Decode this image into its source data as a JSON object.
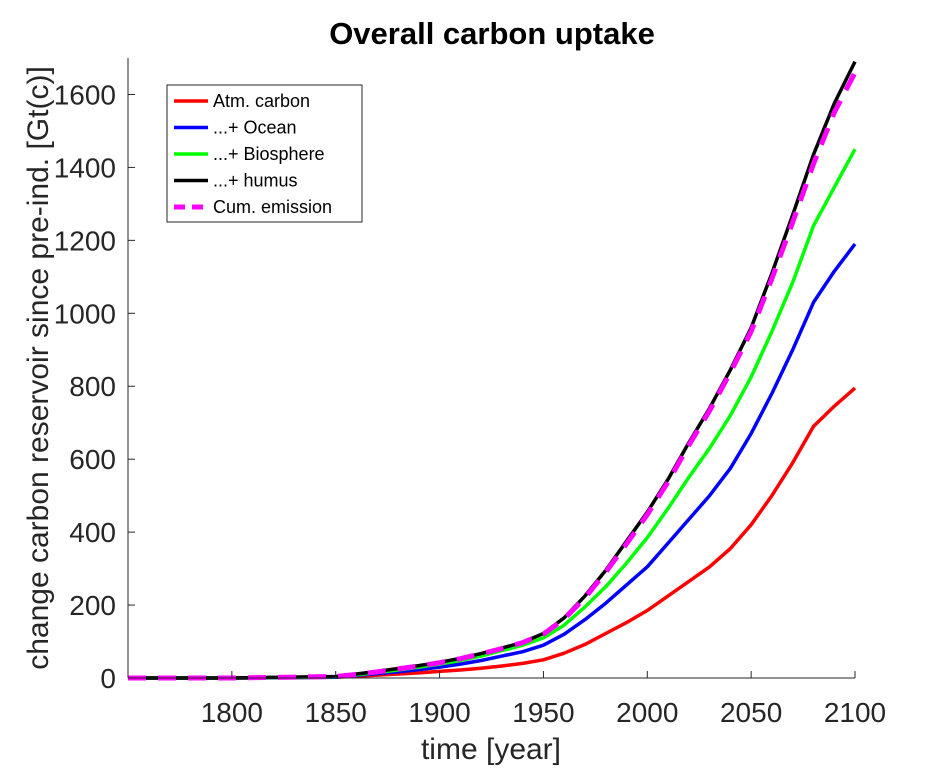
{
  "chart_data": {
    "type": "line",
    "title": "Overall carbon uptake",
    "xlabel": "time [year]",
    "ylabel": "change carbon reservoir since pre-ind. [Gt(c)]",
    "xlim": [
      1750,
      2100
    ],
    "ylim": [
      0,
      1700
    ],
    "xticks": [
      1800,
      1850,
      1900,
      1950,
      2000,
      2050,
      2100
    ],
    "yticks": [
      0,
      200,
      400,
      600,
      800,
      1000,
      1200,
      1400,
      1600
    ],
    "grid": false,
    "legend_position": "top-left",
    "x": [
      1750,
      1800,
      1850,
      1860,
      1870,
      1880,
      1890,
      1900,
      1910,
      1920,
      1930,
      1940,
      1950,
      1960,
      1970,
      1980,
      1990,
      2000,
      2010,
      2020,
      2030,
      2040,
      2050,
      2060,
      2070,
      2080,
      2090,
      2100
    ],
    "series": [
      {
        "name": "Atm. carbon",
        "color": "#ff0000",
        "dash": "solid",
        "values": [
          0,
          0,
          2,
          5,
          8,
          11,
          14,
          18,
          22,
          27,
          33,
          40,
          50,
          68,
          92,
          122,
          152,
          185,
          225,
          265,
          305,
          355,
          420,
          500,
          590,
          690,
          745,
          795
        ]
      },
      {
        "name": "...+ Ocean",
        "color": "#0000ff",
        "dash": "solid",
        "values": [
          0,
          0,
          2,
          7,
          12,
          17,
          23,
          30,
          38,
          48,
          60,
          72,
          90,
          120,
          160,
          205,
          255,
          305,
          370,
          435,
          500,
          575,
          670,
          780,
          900,
          1030,
          1115,
          1190
        ]
      },
      {
        "name": "...+ Biosphere",
        "color": "#00ff00",
        "dash": "solid",
        "values": [
          0,
          0,
          3,
          9,
          15,
          22,
          30,
          38,
          48,
          60,
          75,
          90,
          110,
          145,
          195,
          250,
          315,
          385,
          465,
          550,
          630,
          720,
          825,
          950,
          1085,
          1240,
          1345,
          1450
        ]
      },
      {
        "name": "...+ humus",
        "color": "#000000",
        "dash": "solid",
        "values": [
          0,
          0,
          4,
          11,
          18,
          26,
          34,
          43,
          54,
          67,
          82,
          98,
          122,
          165,
          225,
          295,
          375,
          455,
          545,
          645,
          740,
          845,
          960,
          1110,
          1270,
          1435,
          1575,
          1690
        ]
      },
      {
        "name": "Cum. emission",
        "color": "#ff00ff",
        "dash": "dashed",
        "values": [
          0,
          0,
          4,
          10,
          17,
          25,
          33,
          42,
          53,
          66,
          81,
          97,
          120,
          162,
          220,
          290,
          368,
          448,
          538,
          638,
          733,
          838,
          950,
          1095,
          1250,
          1410,
          1550,
          1660
        ]
      }
    ]
  }
}
